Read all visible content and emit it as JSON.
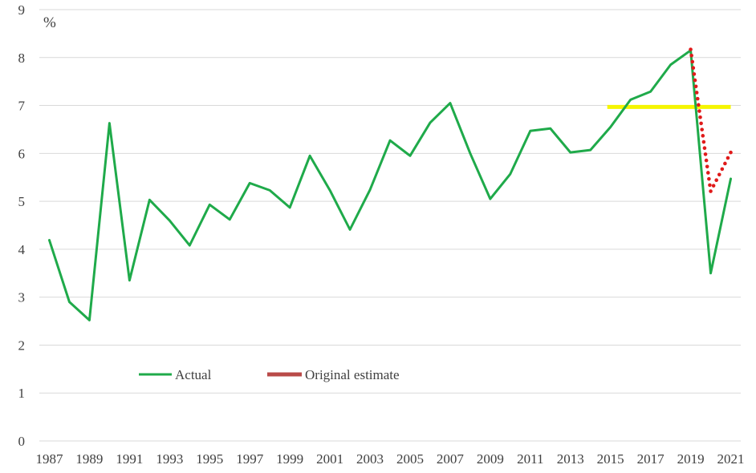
{
  "chart_data": {
    "type": "line",
    "title": "",
    "xlabel": "",
    "ylabel": "",
    "unit_label": "%",
    "ylim": [
      0,
      9
    ],
    "y_ticks": [
      "0",
      "1",
      "2",
      "3",
      "4",
      "5",
      "6",
      "7",
      "8",
      "9"
    ],
    "x_tick_labels": [
      "1987",
      "1989",
      "1991",
      "1993",
      "1995",
      "1997",
      "1999",
      "2001",
      "2003",
      "2005",
      "2007",
      "2009",
      "2011",
      "2013",
      "2015",
      "2017",
      "2019",
      "2021"
    ],
    "grid": true,
    "legend_position": "bottom-left (inside plot)",
    "x": [
      1987,
      1988,
      1989,
      1990,
      1991,
      1992,
      1993,
      1994,
      1995,
      1996,
      1997,
      1998,
      1999,
      2000,
      2001,
      2002,
      2003,
      2004,
      2005,
      2006,
      2007,
      2008,
      2009,
      2010,
      2011,
      2012,
      2013,
      2014,
      2015,
      2016,
      2017,
      2018,
      2019,
      2020,
      2021
    ],
    "series": [
      {
        "name": "Actual",
        "color": "#1faa4a",
        "style": "solid",
        "x": [
          1987,
          1988,
          1989,
          1990,
          1991,
          1992,
          1993,
          1994,
          1995,
          1996,
          1997,
          1998,
          1999,
          2000,
          2001,
          2002,
          2003,
          2004,
          2005,
          2006,
          2007,
          2008,
          2009,
          2010,
          2011,
          2012,
          2013,
          2014,
          2015,
          2016,
          2017,
          2018,
          2019,
          2020,
          2021
        ],
        "values": [
          4.19,
          2.9,
          2.52,
          6.63,
          3.35,
          5.03,
          4.6,
          4.08,
          4.93,
          4.62,
          5.38,
          5.23,
          4.87,
          5.95,
          5.23,
          4.41,
          5.24,
          6.27,
          5.95,
          6.64,
          7.05,
          6.0,
          5.05,
          5.57,
          6.47,
          6.52,
          6.02,
          6.07,
          6.55,
          7.12,
          7.29,
          7.85,
          8.15,
          3.5,
          5.47
        ]
      },
      {
        "name": "Original estimate",
        "color": "#e01a1a",
        "legend_color": "#b94a48",
        "style": "dotted",
        "x": [
          2019,
          2020,
          2021
        ],
        "values": [
          8.17,
          5.21,
          6.02
        ],
        "dip_value": 5.21,
        "dip_year": 2020.0
      }
    ],
    "reference_line": {
      "color": "#f5f500",
      "value": 6.97,
      "x_start": 2015,
      "x_end": 2021
    }
  }
}
